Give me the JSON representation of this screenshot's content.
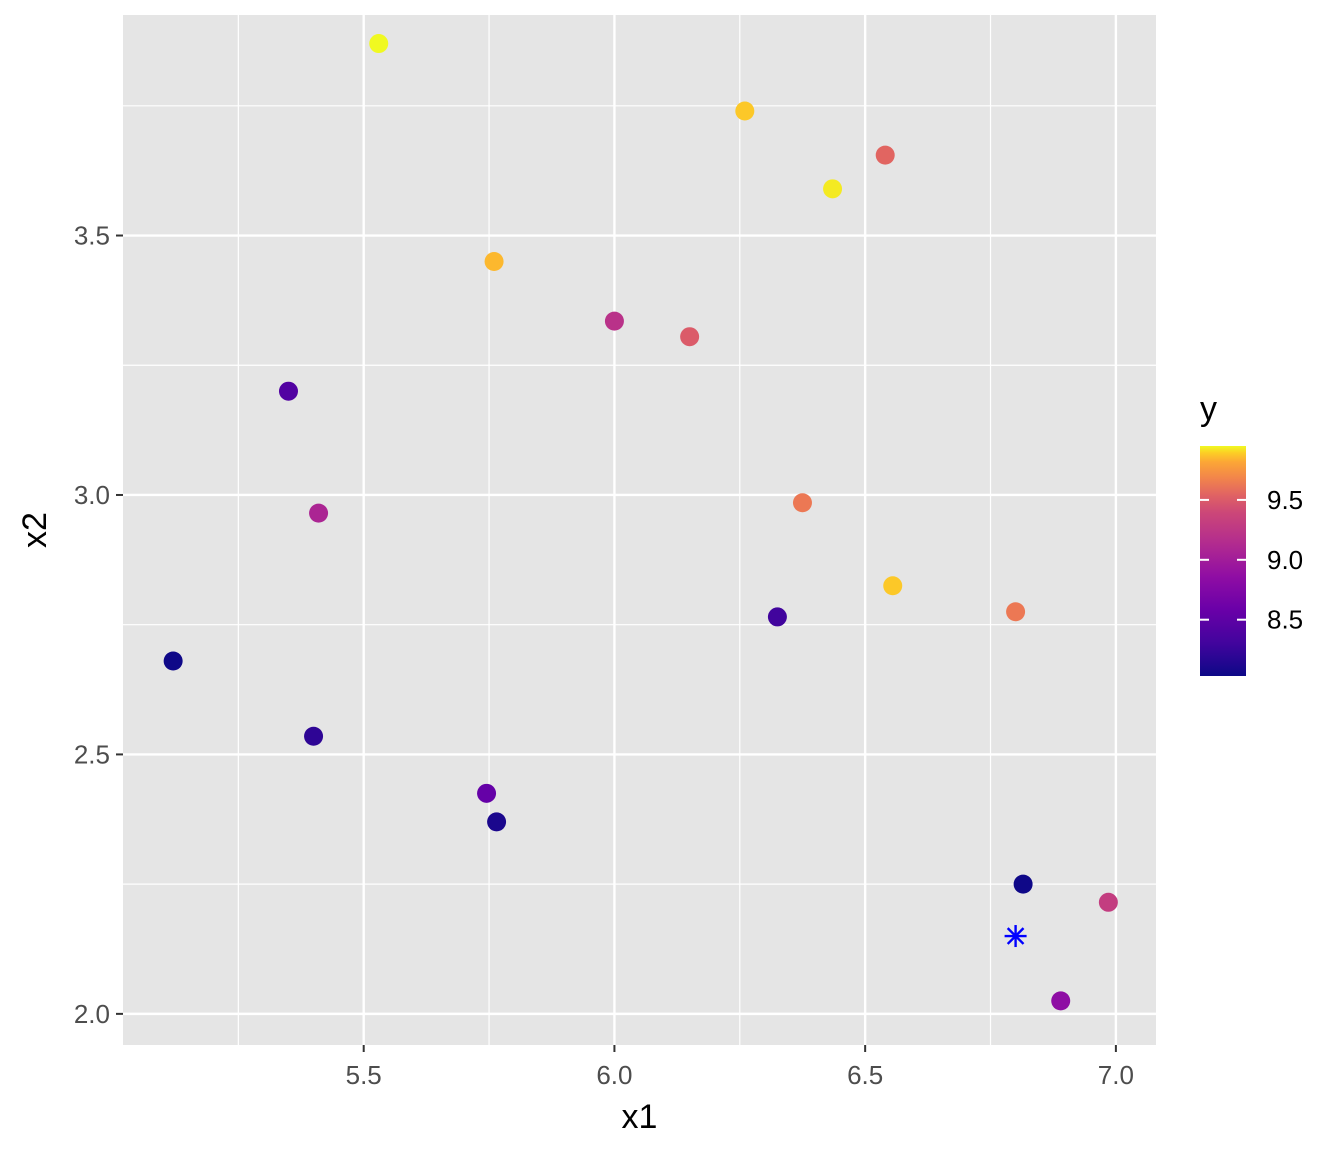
{
  "chart_data": {
    "type": "scatter",
    "title": "",
    "xlabel": "x1",
    "ylabel": "x2",
    "xlim": [
      5.02,
      7.08
    ],
    "ylim": [
      1.94,
      3.925
    ],
    "xticks": [
      5.5,
      6.0,
      6.5,
      7.0
    ],
    "xtick_labels": [
      "5.5",
      "6.0",
      "6.5",
      "7.0"
    ],
    "yticks": [
      2.0,
      2.5,
      3.0,
      3.5
    ],
    "ytick_labels": [
      "2.0",
      "2.5",
      "3.0",
      "3.5"
    ],
    "grid": true,
    "panel_background": "#e5e5e5",
    "grid_color": "#ffffff",
    "color_scale": {
      "name": "plasma",
      "min": 8.03,
      "max": 9.95,
      "legend_title": "y",
      "legend_position": "right",
      "breaks": [
        8.5,
        9.0,
        9.5
      ],
      "break_labels": [
        "8.5",
        "9.0",
        "9.5"
      ]
    },
    "points": [
      {
        "x": 5.53,
        "y": 3.87,
        "value": 9.95
      },
      {
        "x": 6.26,
        "y": 3.74,
        "value": 9.88
      },
      {
        "x": 6.54,
        "y": 3.655,
        "value": 9.55
      },
      {
        "x": 6.435,
        "y": 3.59,
        "value": 9.93
      },
      {
        "x": 5.76,
        "y": 3.45,
        "value": 9.85
      },
      {
        "x": 6.0,
        "y": 3.335,
        "value": 9.2
      },
      {
        "x": 6.15,
        "y": 3.305,
        "value": 9.5
      },
      {
        "x": 5.35,
        "y": 3.2,
        "value": 8.42
      },
      {
        "x": 5.41,
        "y": 2.965,
        "value": 9.08
      },
      {
        "x": 6.375,
        "y": 2.985,
        "value": 9.63
      },
      {
        "x": 6.555,
        "y": 2.825,
        "value": 9.88
      },
      {
        "x": 6.325,
        "y": 2.765,
        "value": 8.3
      },
      {
        "x": 6.8,
        "y": 2.775,
        "value": 9.63
      },
      {
        "x": 5.12,
        "y": 2.68,
        "value": 8.04
      },
      {
        "x": 5.4,
        "y": 2.535,
        "value": 8.2
      },
      {
        "x": 5.745,
        "y": 2.425,
        "value": 8.55
      },
      {
        "x": 5.765,
        "y": 2.37,
        "value": 8.1
      },
      {
        "x": 6.815,
        "y": 2.25,
        "value": 8.04
      },
      {
        "x": 6.985,
        "y": 2.215,
        "value": 9.3
      },
      {
        "x": 6.89,
        "y": 2.025,
        "value": 8.85
      }
    ],
    "highlight": {
      "x": 6.8,
      "y": 2.15,
      "marker": "asterisk",
      "color": "#0000ff"
    }
  }
}
